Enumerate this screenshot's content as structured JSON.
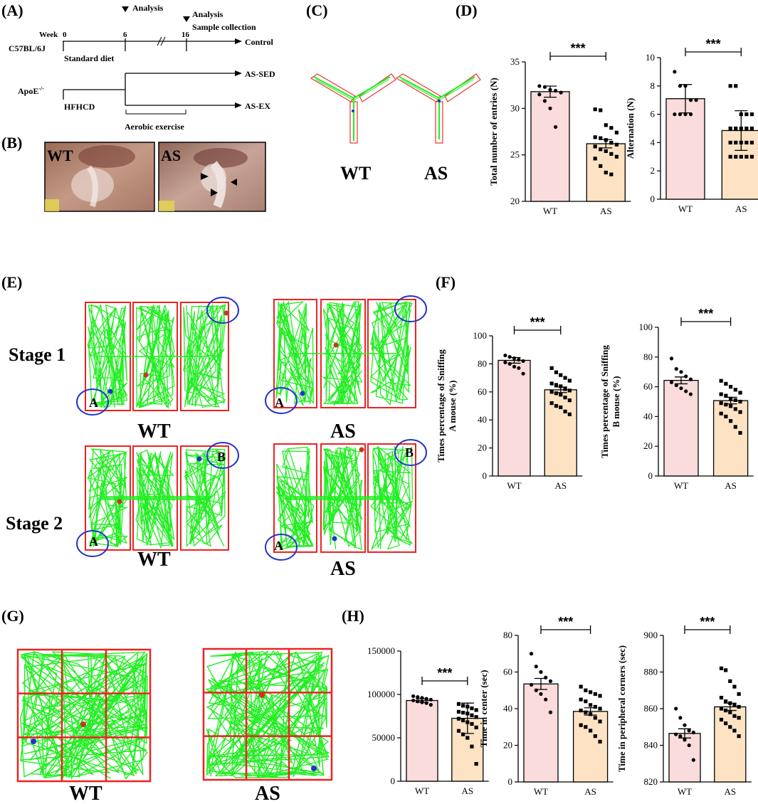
{
  "panel_labels": {
    "A": "(A)",
    "B": "(B)",
    "C": "(C)",
    "D": "(D)",
    "E": "(E)",
    "F": "(F)",
    "G": "(G)",
    "H": "(H)"
  },
  "panelA": {
    "week_label": "Week",
    "week_ticks": [
      "0",
      "6",
      "16"
    ],
    "analysis_label": "Analysis",
    "analysis_label2": "Analysis",
    "sample_collection": "Sample collection",
    "strain1": "C57BL/6J",
    "diet1": "Standard diet",
    "group_control": "Control",
    "strain2": "ApoE",
    "strain2_sup": "-/-",
    "diet2": "HFHCD",
    "group_sed": "AS-SED",
    "group_ex": "AS-EX",
    "exercise": "Aerobic exercise"
  },
  "panelB": {
    "wt": "WT",
    "as": "AS"
  },
  "panelC": {
    "wt": "WT",
    "as": "AS"
  },
  "panelE": {
    "stage1": "Stage 1",
    "stage2": "Stage 2",
    "wt": "WT",
    "as": "AS",
    "mouse_a": "A",
    "mouse_b": "B"
  },
  "panelG": {
    "wt": "WT",
    "as": "AS"
  },
  "colors": {
    "wt_bar": "#fbdcdc",
    "as_bar": "#fde3c4",
    "track": "#22ee22",
    "box": "#ee2222",
    "circle": "#2233cc"
  },
  "chart_data": [
    {
      "id": "D1",
      "type": "bar",
      "categories": [
        "WT",
        "AS"
      ],
      "values": [
        31.8,
        26.2
      ],
      "errors": [
        0.6,
        0.45
      ],
      "ylabel": "Total number of entries (N)",
      "ylim": [
        20,
        35
      ],
      "ticks": [
        "20",
        "25",
        "30",
        "35"
      ],
      "significance": "***",
      "points": {
        "WT": [
          32.4,
          32.3,
          32.0,
          31.9,
          31.7,
          31.5,
          30.8,
          30.0,
          28.0
        ],
        "AS": [
          29.9,
          29.8,
          28.2,
          27.9,
          27.4,
          26.9,
          26.8,
          26.6,
          26.3,
          26.1,
          25.9,
          25.6,
          25.4,
          25.1,
          24.8,
          24.6,
          23.8,
          23.1,
          22.9
        ]
      }
    },
    {
      "id": "D2",
      "type": "bar",
      "categories": [
        "WT",
        "AS"
      ],
      "values": [
        7.1,
        4.85
      ],
      "errors": [
        1.0,
        1.4
      ],
      "ylabel": "Alternation (N)",
      "ylim": [
        0,
        10
      ],
      "ticks": [
        "0",
        "2",
        "4",
        "6",
        "8",
        "10"
      ],
      "significance": "***",
      "points": {
        "WT": [
          9.0,
          8.0,
          8.0,
          7.0,
          7.0,
          6.0,
          6.0,
          6.0,
          6.0
        ],
        "AS": [
          8.0,
          8.0,
          6.0,
          6.0,
          6.0,
          5.0,
          5.0,
          5.0,
          5.0,
          5.0,
          4.0,
          4.0,
          4.0,
          4.0,
          4.0,
          3.0,
          3.0,
          3.0,
          3.0,
          3.0
        ]
      }
    },
    {
      "id": "F1",
      "type": "bar",
      "categories": [
        "WT",
        "AS"
      ],
      "values": [
        82.5,
        61.5
      ],
      "errors": [
        2.0,
        2.0
      ],
      "ylabel": "Times percentage of Sniffing A mouse (%)",
      "ylim": [
        0,
        100
      ],
      "ticks": [
        "0",
        "20",
        "40",
        "60",
        "80",
        "100"
      ],
      "significance": "***",
      "points": {
        "WT": [
          86,
          85,
          84,
          83,
          82,
          81,
          80,
          78,
          77,
          73
        ],
        "AS": [
          77,
          74,
          72,
          70,
          68,
          66,
          65,
          64,
          62,
          61,
          60,
          59,
          58,
          56,
          54,
          52,
          50,
          49,
          46,
          44
        ]
      }
    },
    {
      "id": "F2",
      "type": "bar",
      "categories": [
        "WT",
        "AS"
      ],
      "values": [
        64.3,
        50.7
      ],
      "errors": [
        2.3,
        2.2
      ],
      "ylabel": "Times percentage of Sniffing B mouse (%)",
      "ylim": [
        0,
        100
      ],
      "ticks": [
        "0",
        "20",
        "40",
        "60",
        "80",
        "100"
      ],
      "significance": "***",
      "points": {
        "WT": [
          79,
          72,
          70,
          67,
          65,
          63,
          61,
          59,
          57,
          55
        ],
        "AS": [
          64,
          62,
          60,
          58,
          56,
          55,
          54,
          52,
          51,
          50,
          49,
          48,
          47,
          45,
          43,
          42,
          40,
          37,
          33,
          29
        ]
      }
    },
    {
      "id": "H1",
      "type": "bar",
      "categories": [
        "WT",
        "AS"
      ],
      "values": [
        93000,
        72500
      ],
      "errors": [
        2000,
        17500
      ],
      "ylabel": "",
      "ylim": [
        0,
        150000
      ],
      "ticks": [
        "0",
        "50000",
        "100000",
        "150000"
      ],
      "significance": "***",
      "points": {
        "WT": [
          98000,
          97000,
          96000,
          95000,
          94000,
          93000,
          92000,
          91000,
          90000,
          88000
        ],
        "AS": [
          89000,
          87000,
          86000,
          84000,
          82000,
          80000,
          79000,
          78000,
          76000,
          74000,
          72000,
          70000,
          68000,
          66000,
          62000,
          58000,
          54000,
          50000,
          40000,
          20000
        ]
      }
    },
    {
      "id": "H2",
      "type": "bar",
      "categories": [
        "WT",
        "AS"
      ],
      "values": [
        53.5,
        38.5
      ],
      "errors": [
        3.0,
        2.0
      ],
      "ylabel": "Time in center (sec)",
      "ylim": [
        0,
        80
      ],
      "ticks": [
        "0",
        "20",
        "40",
        "60",
        "80"
      ],
      "significance": "***",
      "points": {
        "WT": [
          70,
          63,
          60,
          57,
          55,
          53,
          50,
          48,
          45,
          38
        ],
        "AS": [
          52,
          50,
          49,
          48,
          47,
          45,
          44,
          42,
          41,
          40,
          39,
          38,
          37,
          35,
          33,
          31,
          30,
          28,
          25,
          22
        ]
      }
    },
    {
      "id": "H3",
      "type": "bar",
      "categories": [
        "WT",
        "AS"
      ],
      "values": [
        846.5,
        861.0
      ],
      "errors": [
        2.5,
        2.0
      ],
      "ylabel": "Time in peripheral corners (sec)",
      "ylim": [
        820,
        900
      ],
      "ticks": [
        "820",
        "840",
        "860",
        "880",
        "900"
      ],
      "significance": "***",
      "points": {
        "WT": [
          860,
          855,
          851,
          848,
          847,
          846,
          845,
          843,
          840,
          832
        ],
        "AS": [
          882,
          881,
          875,
          872,
          868,
          866,
          864,
          863,
          862,
          861,
          860,
          859,
          858,
          856,
          855,
          854,
          852,
          850,
          848,
          845
        ]
      }
    }
  ]
}
